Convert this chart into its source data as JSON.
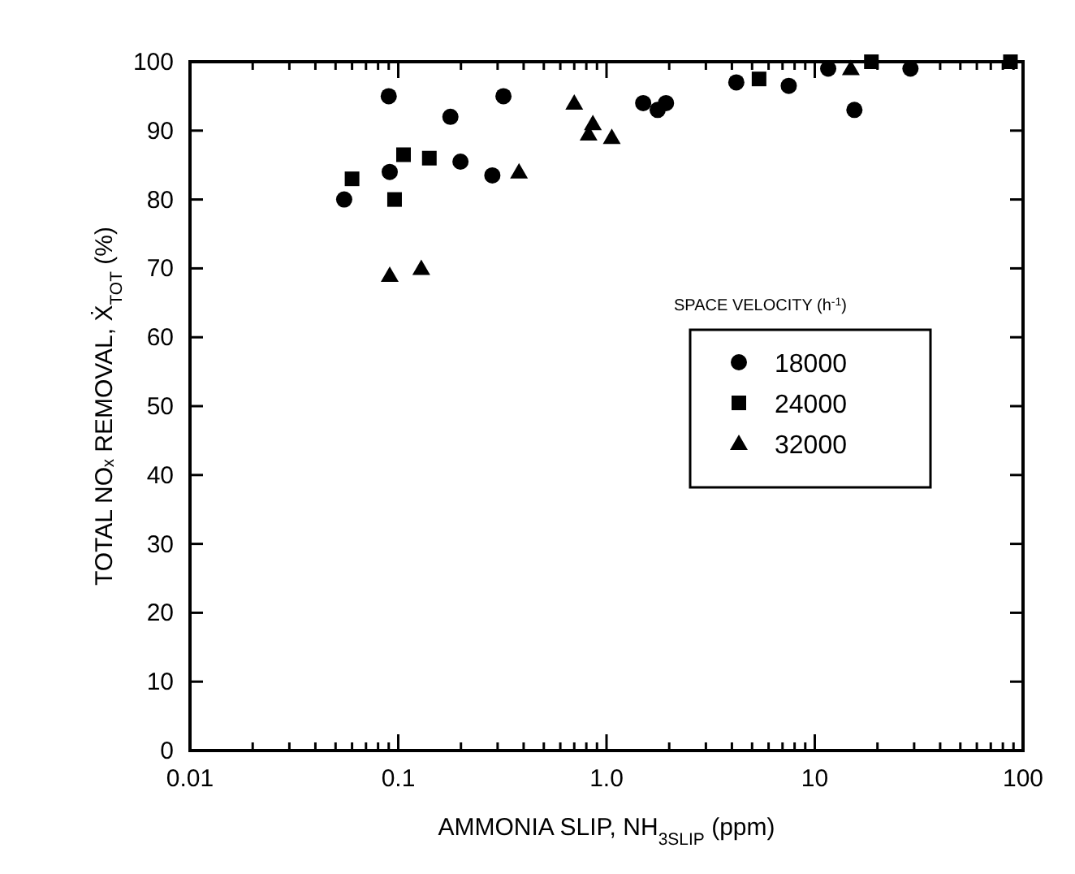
{
  "chart_data": {
    "type": "scatter",
    "xlabel": "AMMONIA SLIP, NH$_{3SLIP}$ (ppm)",
    "ylabel": "TOTAL NOₓ REMOVAL, Ẋ$_{TOT}$ (%)",
    "legend_title": "SPACE VELOCITY (h$^{-1}$)",
    "legend": "right",
    "log": "x",
    "grid": false,
    "xlim": [
      0.01,
      100
    ],
    "ylim": [
      0,
      100
    ],
    "xticks": [
      0.01,
      {
        "value": 0.02,
        "label": null
      },
      {
        "value": 0.03,
        "label": null
      },
      {
        "value": 0.04,
        "label": null
      },
      {
        "value": 0.05,
        "label": null
      },
      {
        "value": 0.06,
        "label": null
      },
      {
        "value": 0.07,
        "label": null
      },
      {
        "value": 0.08,
        "label": null
      },
      {
        "value": 0.09,
        "label": null
      },
      0.1,
      {
        "value": 0.2,
        "label": null
      },
      {
        "value": 0.3,
        "label": null
      },
      {
        "value": 0.4,
        "label": null
      },
      {
        "value": 0.5,
        "label": null
      },
      {
        "value": 0.6,
        "label": null
      },
      {
        "value": 0.7,
        "label": null
      },
      {
        "value": 0.8,
        "label": null
      },
      {
        "value": 0.9,
        "label": null
      },
      {
        "value": 1,
        "label": "1.0"
      },
      {
        "value": 2,
        "label": null
      },
      {
        "value": 3,
        "label": null
      },
      {
        "value": 4,
        "label": null
      },
      {
        "value": 5,
        "label": null
      },
      {
        "value": 6,
        "label": null
      },
      {
        "value": 7,
        "label": null
      },
      {
        "value": 8,
        "label": null
      },
      {
        "value": 9,
        "label": null
      },
      10,
      {
        "value": 20,
        "label": null
      },
      {
        "value": 30,
        "label": null
      },
      {
        "value": 40,
        "label": null
      },
      {
        "value": 50,
        "label": null
      },
      {
        "value": 60,
        "label": null
      },
      {
        "value": 70,
        "label": null
      },
      {
        "value": 80,
        "label": null
      },
      {
        "value": 90,
        "label": null
      },
      100
    ],
    "yticks": [
      0,
      10,
      20,
      30,
      40,
      50,
      60,
      70,
      80,
      90,
      100
    ],
    "series": [
      {
        "name": "18000",
        "color": "#000000",
        "marker": "circle",
        "x": [
          0.055,
          0.09,
          0.091,
          0.178,
          0.199,
          0.283,
          0.32,
          1.5,
          1.76,
          1.93,
          4.2,
          7.5,
          11.6,
          15.5,
          28.8
        ],
        "values": [
          80,
          95,
          84,
          92,
          85.5,
          83.5,
          95,
          94,
          93,
          94,
          97,
          96.5,
          99,
          93,
          99
        ]
      },
      {
        "name": "24000",
        "color": "#000000",
        "marker": "square",
        "x": [
          0.06,
          0.096,
          0.106,
          0.141,
          5.4,
          18.7,
          87
        ],
        "values": [
          83,
          80,
          86.5,
          86,
          97.5,
          100,
          100
        ]
      },
      {
        "name": "32000",
        "color": "#000000",
        "marker": "triangle",
        "x": [
          0.091,
          0.129,
          0.38,
          0.7,
          0.82,
          0.86,
          1.06,
          14.9
        ],
        "values": [
          69,
          70,
          84,
          94,
          89.5,
          91,
          89,
          99
        ]
      }
    ]
  }
}
